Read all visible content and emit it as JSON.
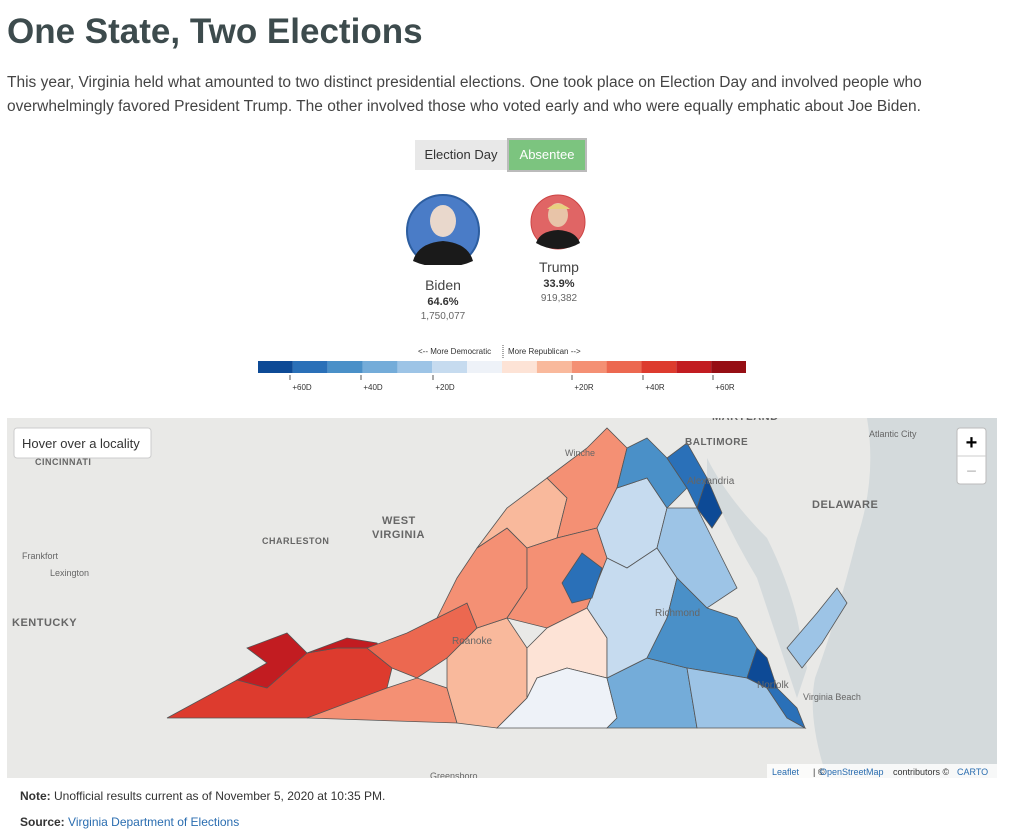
{
  "header": {
    "title": "One State, Two Elections",
    "intro": "This year, Virginia held what amounted to two distinct presidential elections. One took place on Election Day and involved people who overwhelmingly favored President Trump. The other involved those who voted early and who were equally emphatic about Joe Biden."
  },
  "toggle": [
    "Election Day",
    "Absentee"
  ],
  "candidates": [
    {
      "name": "Biden",
      "pct": "64.6%",
      "votes": "1,750,077"
    },
    {
      "name": "Trump",
      "pct": "33.9%",
      "votes": "919,382"
    }
  ],
  "legend": {
    "left": "<-- More Democratic",
    "right": "More Republican -->",
    "colors": [
      "#0d4a96",
      "#2a70b8",
      "#4a90c8",
      "#74acd9",
      "#9dc4e6",
      "#c6dbef",
      "#eef2f8",
      "#fde3d6",
      "#f9b99c",
      "#f49074",
      "#ec6850",
      "#dd3b2e",
      "#c21c21",
      "#960e14"
    ],
    "ticks": [
      "+60D",
      "+40D",
      "+20D",
      "+20R",
      "+40R",
      "+60R"
    ]
  },
  "map": {
    "hover": "Hover over a locality",
    "zoom_in": "+",
    "zoom_out": "−",
    "labels": [
      "MARYLAND",
      "BALTIMORE",
      "Atlantic City",
      "Winche",
      "Alexandria",
      "DELAWARE",
      "WEST",
      "VIRGINIA",
      "CHARLESTON",
      "CINCINNATI",
      "Frankfort",
      "Lexington",
      "KENTUCKY",
      "Roanoke",
      "Richmond",
      "Norfolk",
      "Virginia Beach",
      "Greensboro"
    ],
    "attribution": [
      "Leaflet",
      "| ©",
      "OpenStreetMap",
      "contributors ©",
      "CARTO"
    ]
  },
  "footer": {
    "note_label": "Note:",
    "note": "Unofficial results current as of November 5, 2020 at 10:35 PM.",
    "source_label": "Source:",
    "source": "Virginia Department of Elections"
  }
}
